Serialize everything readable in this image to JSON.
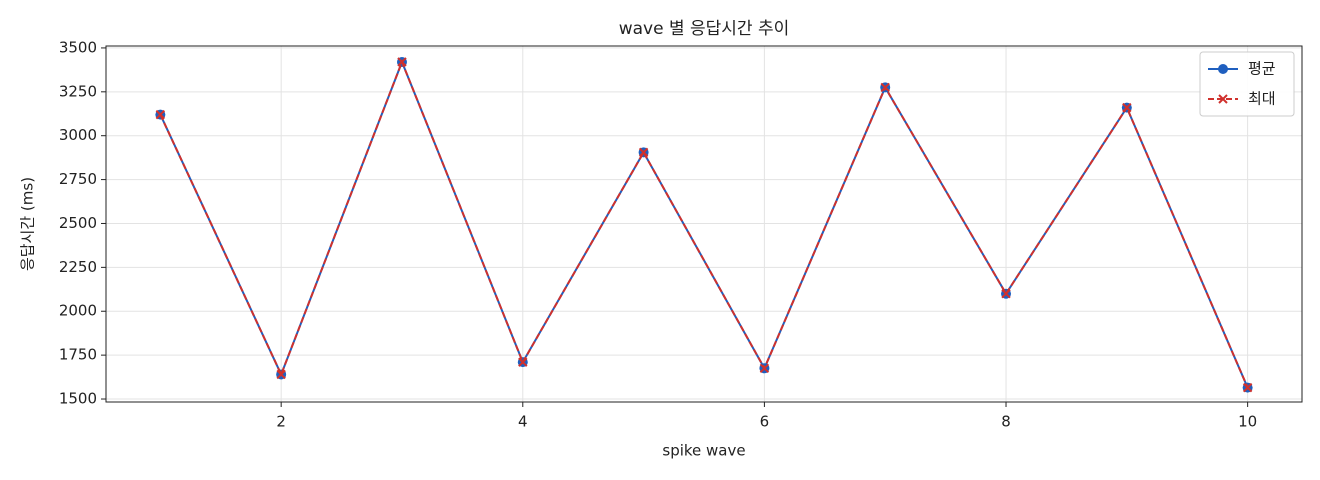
{
  "chart_data": {
    "type": "line",
    "title": "wave 별 응답시간 추이",
    "x_label": "spike wave",
    "y_label": "응답시간 (ms)",
    "x": [
      1,
      2,
      3,
      4,
      5,
      6,
      7,
      8,
      9,
      10
    ],
    "series": [
      {
        "name": "평균",
        "color": "#1f5fbf",
        "line_style": "solid",
        "marker": "circle",
        "values": [
          3120,
          1640,
          3420,
          1710,
          2905,
          1675,
          3275,
          2100,
          3160,
          1565
        ]
      },
      {
        "name": "최대",
        "color": "#d0312d",
        "line_style": "dashed",
        "marker": "x",
        "values": [
          3120,
          1640,
          3420,
          1710,
          2905,
          1675,
          3275,
          2100,
          3160,
          1565
        ]
      }
    ],
    "xlim": [
      0.55,
      10.45
    ],
    "ylim": [
      1483,
      3511
    ],
    "xticks": [
      2,
      4,
      6,
      8,
      10
    ],
    "yticks": [
      1500,
      1750,
      2000,
      2250,
      2500,
      2750,
      3000,
      3250,
      3500
    ],
    "grid": true,
    "legend_position": "upper-right"
  }
}
